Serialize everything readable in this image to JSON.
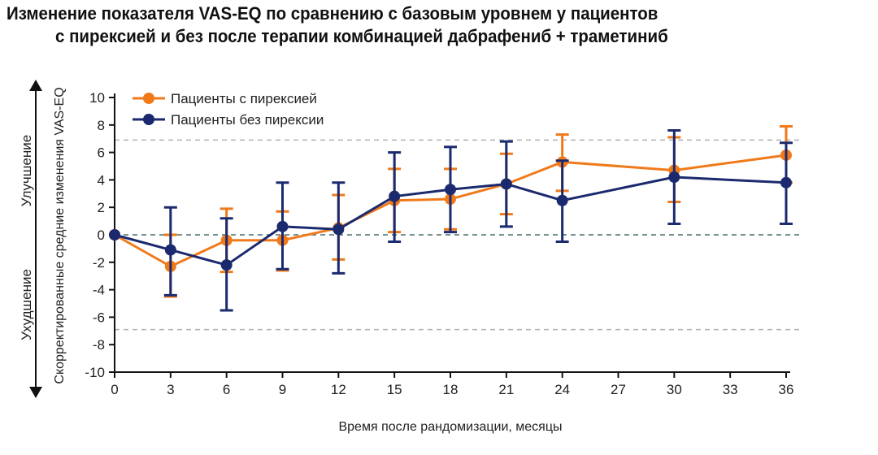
{
  "chart_data": {
    "type": "line",
    "title": [
      "Изменение показателя VAS-EQ по сравнению с базовым уровнем у пациентов",
      "с пирексией и без  после терапии комбинацией дабрафениб + траметиниб"
    ],
    "xlabel": "Время после рандомизации, месяцы",
    "ylabel": "Скорректированные средние  изменения  VAS-EQ",
    "y_direction_labels": {
      "up": "Улучшение",
      "down": "Ухудшение"
    },
    "xlim": [
      0,
      36
    ],
    "ylim": [
      -10,
      10
    ],
    "x_ticks": [
      0,
      3,
      6,
      9,
      12,
      15,
      18,
      21,
      24,
      27,
      30,
      33,
      36
    ],
    "y_ticks": [
      10,
      8,
      6,
      4,
      2,
      0,
      -2,
      -4,
      -6,
      -8,
      -10
    ],
    "reference_lines": [
      {
        "y": 6.9,
        "color": "#b0b0b0"
      },
      {
        "y": 0,
        "color": "#4a6b6b"
      },
      {
        "y": -6.9,
        "color": "#b0b0b0"
      }
    ],
    "legend_position": "top-left",
    "series": [
      {
        "name": "Пациенты с пирексией",
        "color": "#f07a1a",
        "x": [
          0,
          3,
          6,
          9,
          12,
          15,
          18,
          21,
          24,
          30,
          36
        ],
        "y": [
          0,
          -2.3,
          -0.4,
          -0.4,
          0.5,
          2.5,
          2.6,
          3.7,
          5.3,
          4.7,
          5.8
        ],
        "lower": [
          0,
          -4.5,
          -2.7,
          -2.6,
          -1.8,
          0.2,
          0.4,
          1.5,
          3.2,
          2.4,
          3.8
        ],
        "upper": [
          0,
          0,
          1.9,
          1.7,
          2.9,
          4.8,
          4.8,
          5.9,
          7.3,
          7.1,
          7.9
        ]
      },
      {
        "name": "Пациенты без пирексии",
        "color": "#1b2a6e",
        "x": [
          0,
          3,
          6,
          9,
          12,
          15,
          18,
          21,
          24,
          30,
          36
        ],
        "y": [
          0,
          -1.1,
          -2.2,
          0.6,
          0.4,
          2.8,
          3.3,
          3.7,
          2.5,
          4.2,
          3.8
        ],
        "lower": [
          0,
          -4.4,
          -5.5,
          -2.5,
          -2.8,
          -0.5,
          0.2,
          0.6,
          -0.5,
          0.8,
          0.8
        ],
        "upper": [
          0,
          2.0,
          1.2,
          3.8,
          3.8,
          6.0,
          6.4,
          6.8,
          5.4,
          7.6,
          6.7
        ]
      }
    ]
  }
}
